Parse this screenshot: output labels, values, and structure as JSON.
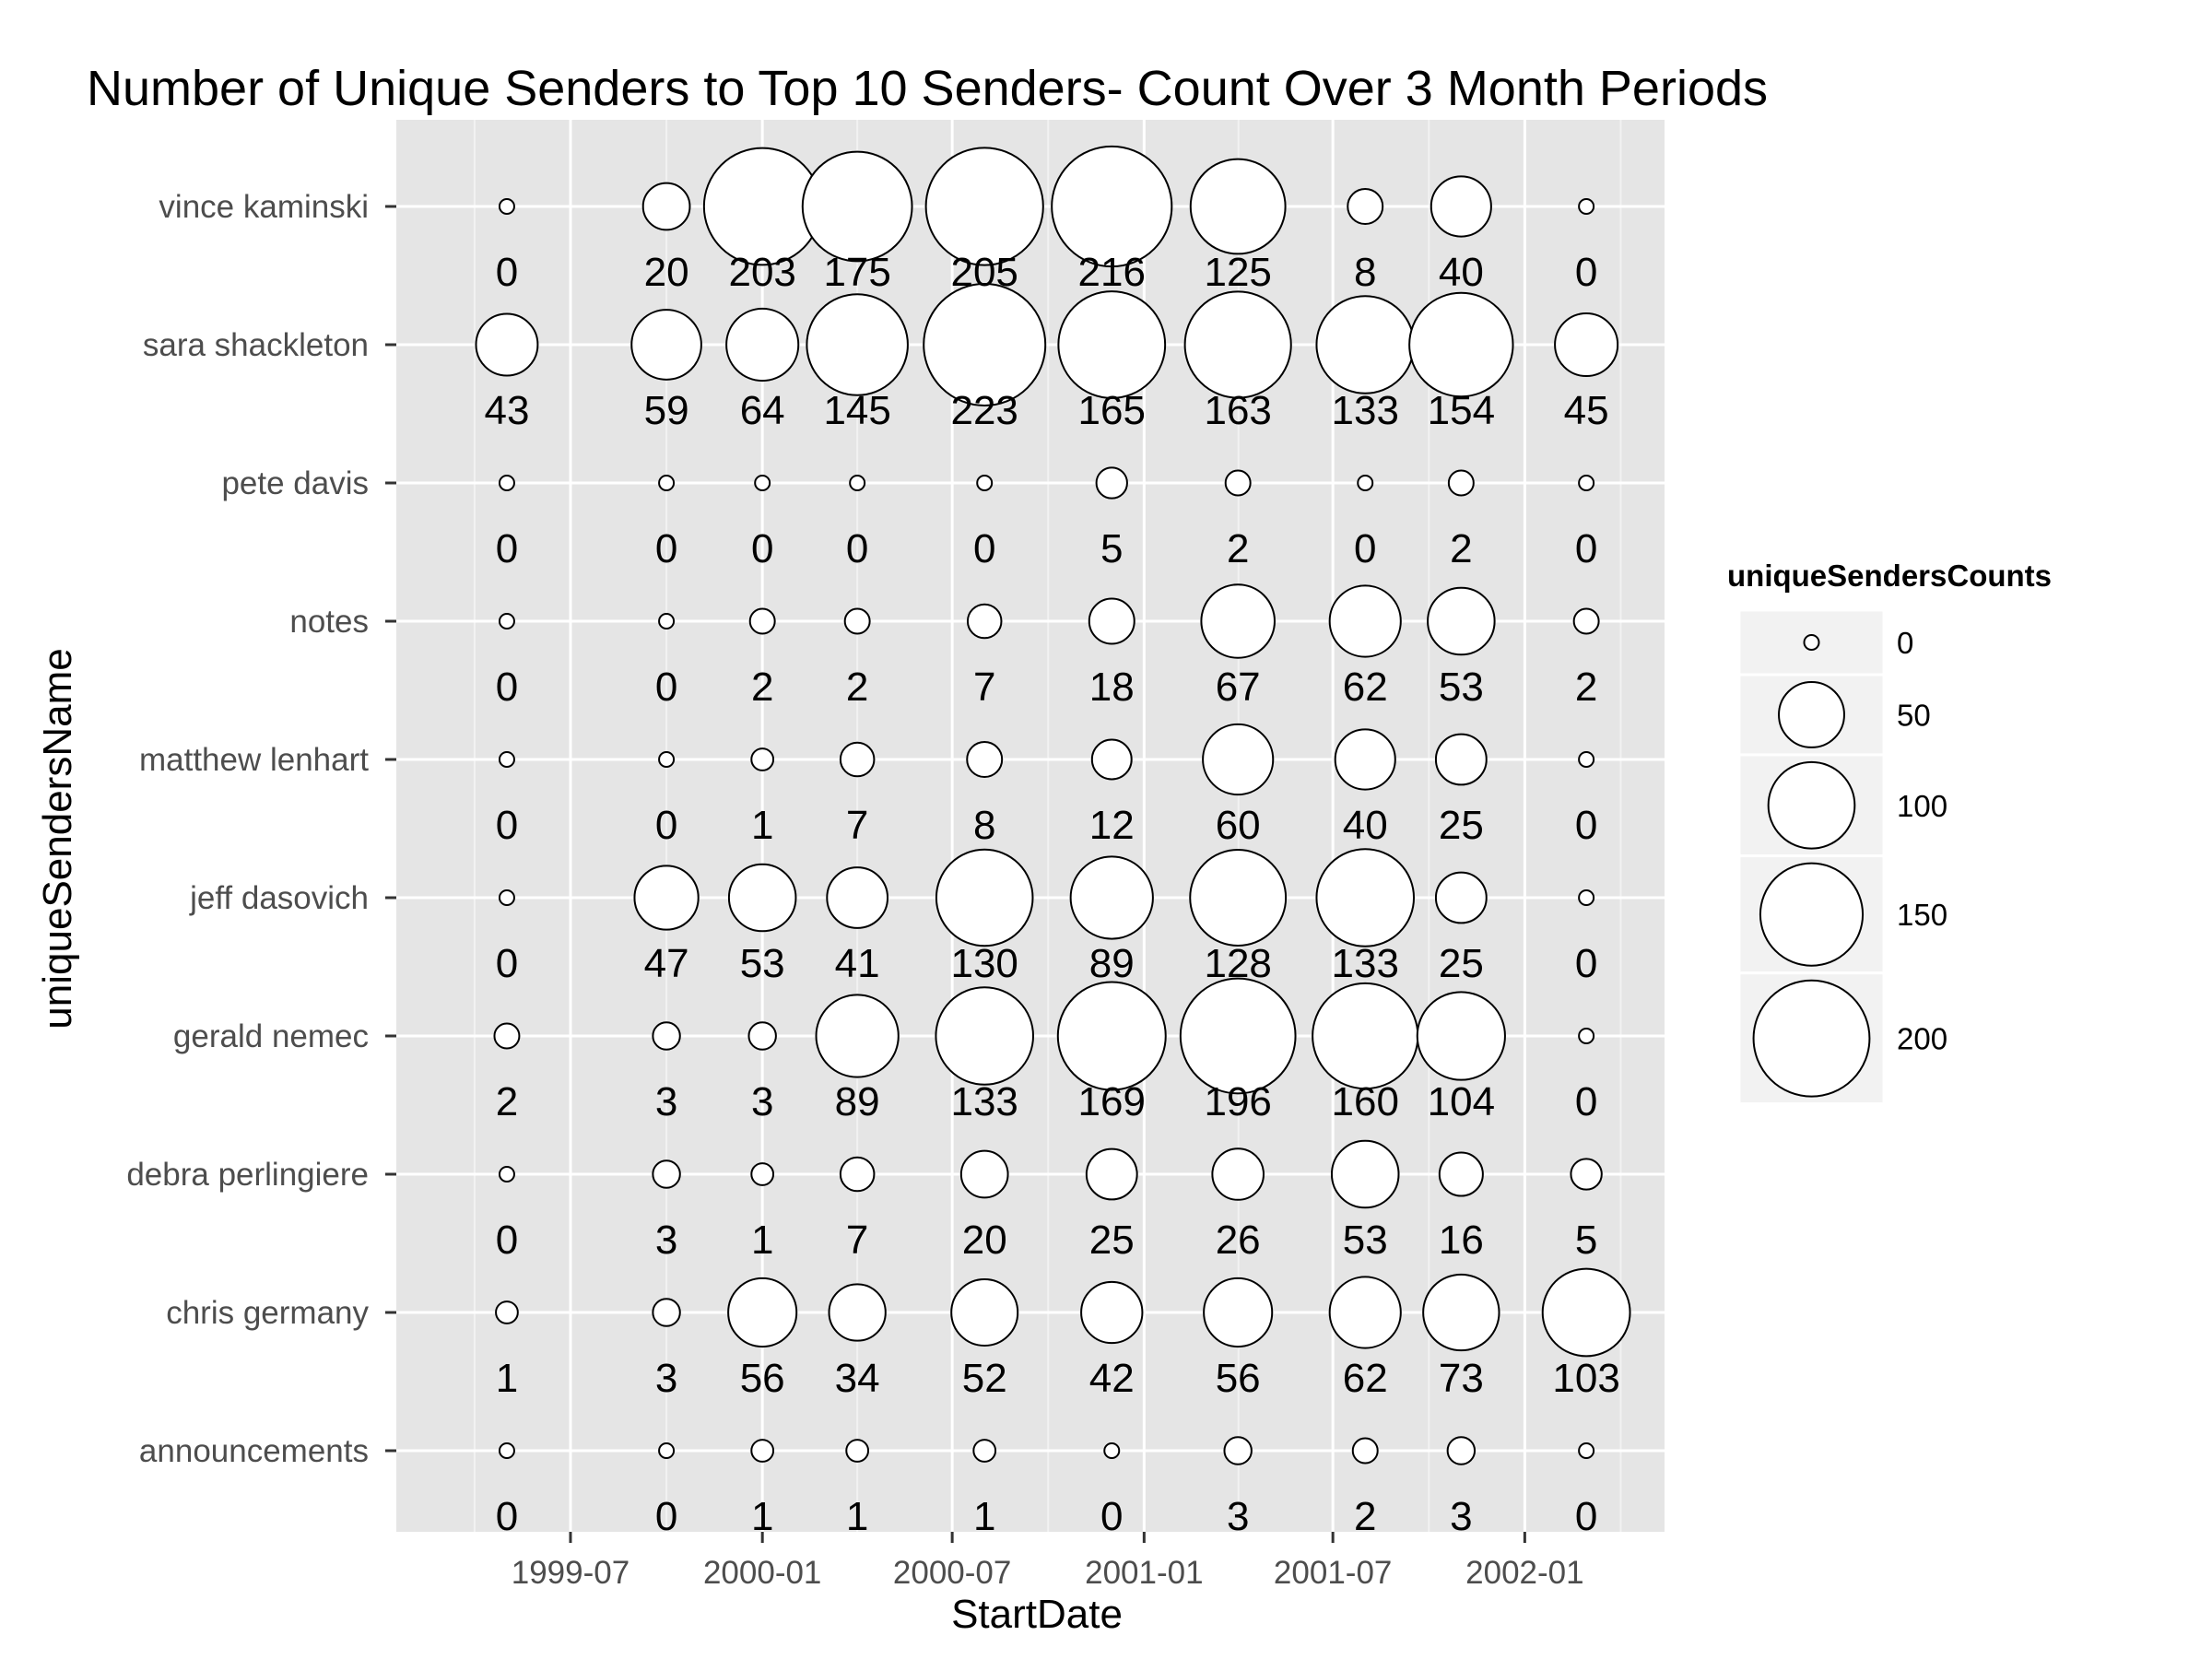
{
  "chart_data": {
    "type": "scatter",
    "subtype": "bubble",
    "title": "Number of Unique Senders to Top 10 Senders- Count Over 3 Month Periods",
    "xlabel": "StartDate",
    "ylabel": "uniqueSendersName",
    "x_tick_labels": [
      "1999-07",
      "2000-01",
      "2000-07",
      "2001-01",
      "2001-07",
      "2002-01"
    ],
    "x_tick_positions": [
      "1999-07-01",
      "2000-01-01",
      "2000-07-01",
      "2001-01-01",
      "2001-07-01",
      "2002-01-01"
    ],
    "x": [
      "1999-05-01",
      "1999-10-01",
      "2000-01-01",
      "2000-04-01",
      "2000-08-01",
      "2000-12-01",
      "2001-04-01",
      "2001-08-01",
      "2001-11-01",
      "2002-03-01"
    ],
    "xlim": [
      "1999-01-15",
      "2002-05-15"
    ],
    "categories": [
      "announcements",
      "chris germany",
      "debra perlingiere",
      "gerald nemec",
      "jeff dasovich",
      "matthew lenhart",
      "notes",
      "pete davis",
      "sara shackleton",
      "vince kaminski"
    ],
    "series": [
      {
        "name": "announcements",
        "values": [
          0,
          0,
          1,
          1,
          1,
          0,
          3,
          2,
          3,
          0
        ]
      },
      {
        "name": "chris germany",
        "values": [
          1,
          3,
          56,
          34,
          52,
          42,
          56,
          62,
          73,
          103
        ]
      },
      {
        "name": "debra perlingiere",
        "values": [
          0,
          3,
          1,
          7,
          20,
          25,
          26,
          53,
          16,
          5
        ]
      },
      {
        "name": "gerald nemec",
        "values": [
          2,
          3,
          3,
          89,
          133,
          169,
          196,
          160,
          104,
          0
        ]
      },
      {
        "name": "jeff dasovich",
        "values": [
          0,
          47,
          53,
          41,
          130,
          89,
          128,
          133,
          25,
          0
        ]
      },
      {
        "name": "matthew lenhart",
        "values": [
          0,
          0,
          1,
          7,
          8,
          12,
          60,
          40,
          25,
          0
        ]
      },
      {
        "name": "notes",
        "values": [
          0,
          0,
          2,
          2,
          7,
          18,
          67,
          62,
          53,
          2
        ]
      },
      {
        "name": "pete davis",
        "values": [
          0,
          0,
          0,
          0,
          0,
          5,
          2,
          0,
          2,
          0
        ]
      },
      {
        "name": "sara shackleton",
        "values": [
          43,
          59,
          64,
          145,
          223,
          165,
          163,
          133,
          154,
          45
        ]
      },
      {
        "name": "vince kaminski",
        "values": [
          0,
          20,
          203,
          175,
          205,
          216,
          125,
          8,
          40,
          0
        ]
      }
    ],
    "size_legend": {
      "title": "uniqueSendersCounts",
      "values": [
        0,
        50,
        100,
        150,
        200
      ],
      "labels": [
        "0",
        "50",
        "100",
        "150",
        "200"
      ]
    },
    "grid": true,
    "legend_position": "right",
    "colors": {
      "panel_background": "#e5e5e5",
      "grid_major": "#ffffff",
      "grid_minor": "#f2f2f2",
      "bubble_fill": "#ffffff",
      "bubble_stroke": "#000000",
      "tick_text": "#4d4d4d",
      "legend_key_background": "#f2f2f2"
    }
  }
}
